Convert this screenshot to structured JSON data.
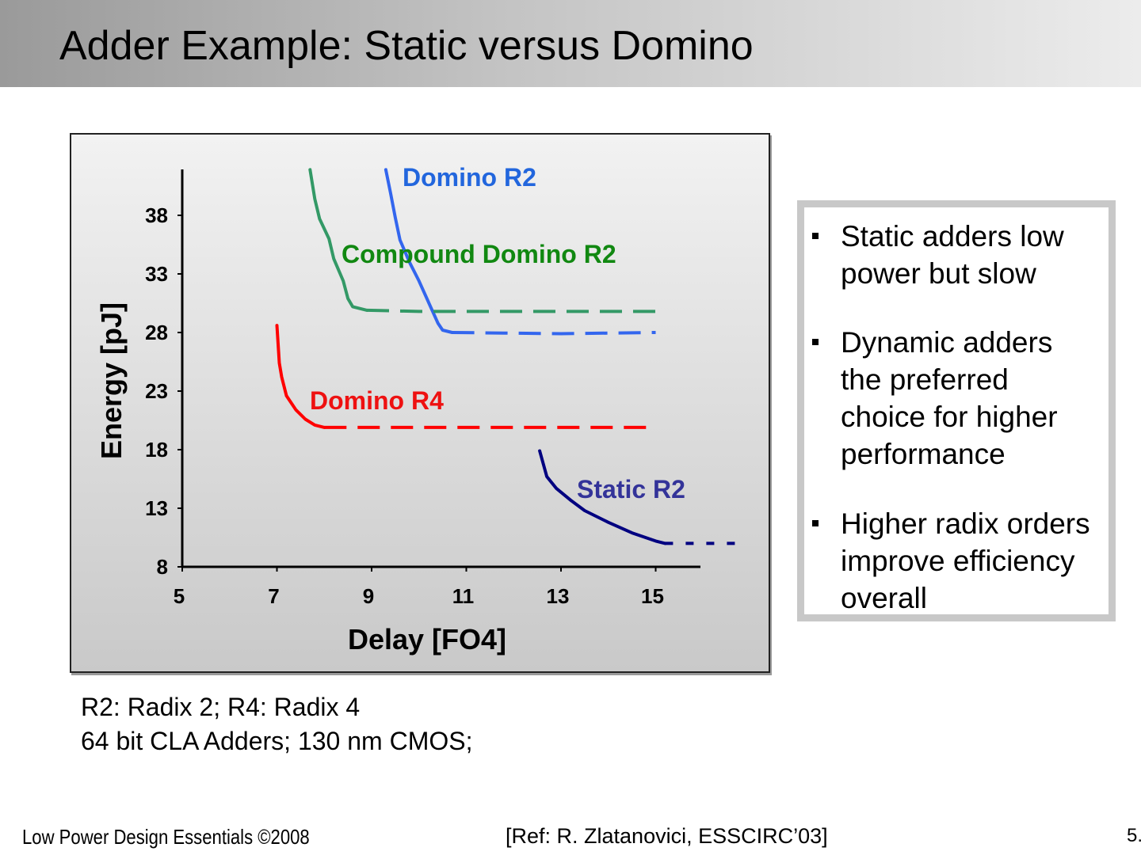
{
  "slide": {
    "title": "Adder Example: Static versus Domino",
    "notes": [
      "R2: Radix 2; R4: Radix 4",
      "64 bit CLA Adders; 130 nm CMOS;"
    ],
    "footer_left": "Low Power Design Essentials ©2008",
    "footer_ref": "[Ref: R. Zlatanovici, ESSCIRC’03]",
    "page_number": "5."
  },
  "bullets": [
    {
      "text": "Static adders low power but slow"
    },
    {
      "text": "Dynamic adders the preferred choice for higher performance"
    },
    {
      "text": "Higher radix orders improve efficiency overall"
    }
  ],
  "chart_data": {
    "type": "line",
    "title": "",
    "xlabel": "Delay [FO4]",
    "ylabel": "Energy [pJ]",
    "xlim": [
      5,
      16
    ],
    "ylim": [
      8,
      42
    ],
    "xticks": [
      "5",
      "7",
      "9",
      "11",
      "13",
      "15"
    ],
    "yticks": [
      "8",
      "13",
      "18",
      "23",
      "28",
      "33",
      "38"
    ],
    "grid": false,
    "series": [
      {
        "name": "Domino R2",
        "color": "#3366ee",
        "solid": [
          [
            9.3,
            41.9
          ],
          [
            9.4,
            39.9
          ],
          [
            9.5,
            37.8
          ],
          [
            9.6,
            35.9
          ],
          [
            9.8,
            34.0
          ],
          [
            10.0,
            32.4
          ],
          [
            10.2,
            30.6
          ],
          [
            10.4,
            28.8
          ],
          [
            10.5,
            28.2
          ],
          [
            10.7,
            28.0
          ]
        ],
        "dashed": [
          [
            10.7,
            28.0
          ],
          [
            13.0,
            27.9
          ],
          [
            15.0,
            28.0
          ]
        ]
      },
      {
        "name": "Compound Domino R2",
        "color": "#339966",
        "solid": [
          [
            7.7,
            41.9
          ],
          [
            7.8,
            39.4
          ],
          [
            7.9,
            37.7
          ],
          [
            8.1,
            36.0
          ],
          [
            8.2,
            34.3
          ],
          [
            8.4,
            32.4
          ],
          [
            8.5,
            30.9
          ],
          [
            8.6,
            30.2
          ],
          [
            8.9,
            29.9
          ]
        ],
        "dashed": [
          [
            8.9,
            29.9
          ],
          [
            10.0,
            29.8
          ],
          [
            15.0,
            29.8
          ]
        ]
      },
      {
        "name": "Domino R4",
        "color": "#ff0000",
        "solid": [
          [
            7.0,
            28.6
          ],
          [
            7.05,
            25.4
          ],
          [
            7.1,
            24.2
          ],
          [
            7.2,
            22.6
          ],
          [
            7.4,
            21.4
          ],
          [
            7.6,
            20.6
          ],
          [
            7.8,
            20.1
          ],
          [
            8.0,
            19.9
          ]
        ],
        "dashed": [
          [
            8.0,
            19.9
          ],
          [
            15.0,
            19.9
          ]
        ]
      },
      {
        "name": "Static R2",
        "color": "#000080",
        "solid": [
          [
            12.55,
            17.9
          ],
          [
            12.7,
            15.7
          ],
          [
            12.9,
            14.7
          ],
          [
            13.2,
            13.7
          ],
          [
            13.5,
            12.8
          ],
          [
            14.0,
            11.8
          ],
          [
            14.5,
            10.9
          ],
          [
            15.0,
            10.2
          ],
          [
            15.2,
            10.0
          ]
        ],
        "dashed": [
          [
            15.2,
            10.0
          ],
          [
            16.8,
            10.0
          ]
        ]
      }
    ]
  }
}
